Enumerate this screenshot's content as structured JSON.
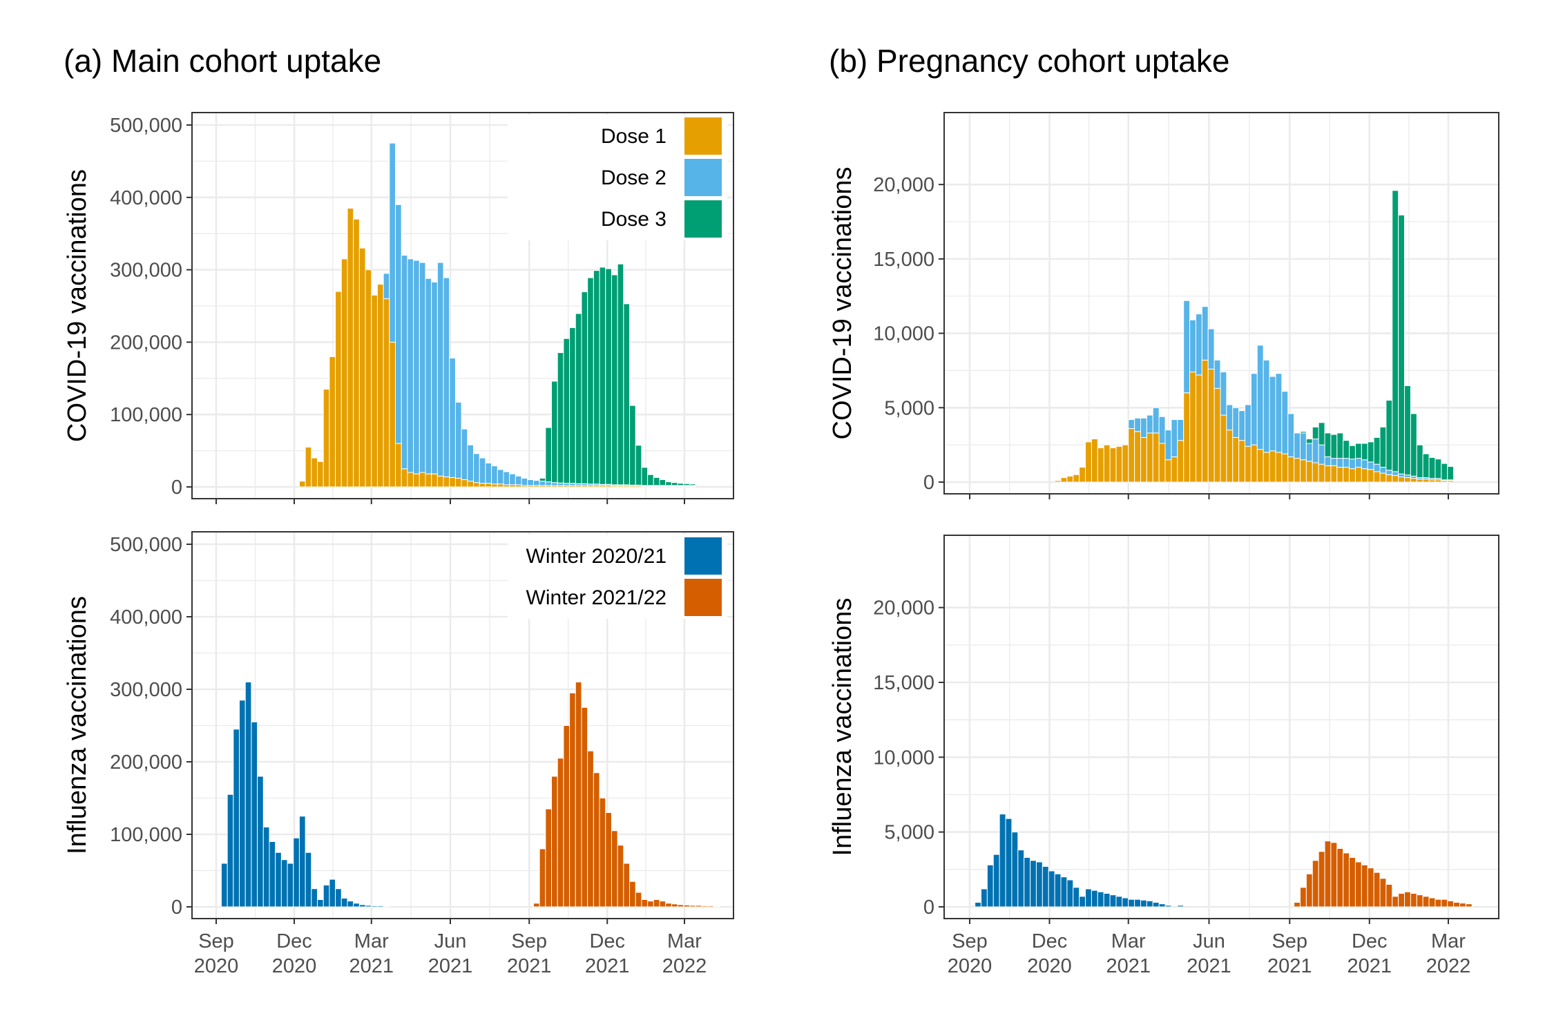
{
  "colors": {
    "dose1": "#E69F00",
    "dose2": "#56B4E9",
    "dose3": "#009E73",
    "winter2020": "#0072B2",
    "winter2021": "#D55E00",
    "grid": "#ebebeb",
    "frame": "#333333",
    "tick_text": "#4d4d4d"
  },
  "x_ticks": [
    {
      "date": "2020-09-01",
      "label": "Sep\n2020"
    },
    {
      "date": "2020-12-01",
      "label": "Dec\n2020"
    },
    {
      "date": "2021-03-01",
      "label": "Mar\n2021"
    },
    {
      "date": "2021-06-01",
      "label": "Jun\n2021"
    },
    {
      "date": "2021-09-01",
      "label": "Sep\n2021"
    },
    {
      "date": "2021-12-01",
      "label": "Dec\n2021"
    },
    {
      "date": "2022-03-01",
      "label": "Mar\n2022"
    }
  ],
  "chart_data": [
    {
      "type": "bar",
      "stacked": true,
      "title": "(a) Main cohort uptake",
      "xlabel": "",
      "ylabel": "COVID-19 vaccinations",
      "ylim": [
        0,
        500000
      ],
      "y_ticks": [
        0,
        100000,
        200000,
        300000,
        400000,
        500000
      ],
      "y_tick_labels": [
        "0",
        "100,000",
        "200,000",
        "300,000",
        "400,000",
        "500,000"
      ],
      "grid": true,
      "legend_position": "top-right",
      "x_start": "2020-12-07",
      "x_interval": "week",
      "series": [
        {
          "name": "Dose 1",
          "color_key": "dose1",
          "values": [
            8000,
            55000,
            40000,
            35000,
            135000,
            180000,
            270000,
            315000,
            385000,
            370000,
            330000,
            300000,
            265000,
            280000,
            260000,
            200000,
            60000,
            25000,
            20000,
            18000,
            20000,
            18000,
            18000,
            15000,
            14000,
            13000,
            12000,
            10000,
            8000,
            6000,
            5000,
            5000,
            4000,
            4000,
            3000,
            3000,
            3000,
            2000,
            2000,
            2000,
            2000,
            2000,
            2000,
            2000,
            2000,
            2000,
            2000,
            2000,
            2000,
            2000,
            2000,
            2000,
            1500,
            1500,
            1500,
            1500,
            1500,
            1000,
            1000,
            1000,
            1000,
            1000,
            1000,
            1000,
            1000,
            1000
          ]
        },
        {
          "name": "Dose 2",
          "color_key": "dose2",
          "values": [
            0,
            0,
            0,
            0,
            0,
            0,
            0,
            0,
            0,
            0,
            0,
            0,
            0,
            0,
            35000,
            275000,
            330000,
            295000,
            295000,
            295000,
            290000,
            270000,
            265000,
            295000,
            275000,
            165000,
            105000,
            70000,
            50000,
            40000,
            35000,
            28000,
            25000,
            20000,
            18000,
            15000,
            12000,
            10000,
            8000,
            7000,
            6000,
            5000,
            4000,
            3500,
            3000,
            3000,
            2500,
            2500,
            2000,
            2000,
            1500,
            1500,
            1500,
            1500,
            1500,
            1000,
            1000,
            1000,
            1000,
            1000,
            1000,
            1000,
            1000,
            1000,
            1000,
            1000
          ]
        },
        {
          "name": "Dose 3",
          "color_key": "dose3",
          "values": [
            0,
            0,
            0,
            0,
            0,
            0,
            0,
            0,
            0,
            0,
            0,
            0,
            0,
            0,
            0,
            0,
            0,
            0,
            0,
            0,
            0,
            0,
            0,
            0,
            0,
            0,
            0,
            0,
            0,
            0,
            0,
            0,
            0,
            0,
            0,
            0,
            0,
            0,
            0,
            0,
            4000,
            75000,
            140000,
            180000,
            200000,
            215000,
            235000,
            265000,
            285000,
            295000,
            300000,
            298000,
            290000,
            305000,
            250000,
            110000,
            55000,
            25000,
            15000,
            11000,
            8000,
            5000,
            4000,
            3000,
            2500,
            2000
          ]
        }
      ]
    },
    {
      "type": "bar",
      "stacked": true,
      "title": "(b) Pregnancy cohort uptake",
      "xlabel": "",
      "ylabel": "COVID-19 vaccinations",
      "ylim": [
        0,
        24000
      ],
      "y_ticks": [
        0,
        5000,
        10000,
        15000,
        20000
      ],
      "y_tick_labels": [
        "0",
        "5,000",
        "10,000",
        "15,000",
        "20,000"
      ],
      "grid": true,
      "legend_position": "none",
      "x_start": "2020-12-07",
      "x_interval": "week",
      "series": [
        {
          "name": "Dose 1",
          "color_key": "dose1",
          "values": [
            100,
            300,
            400,
            500,
            1000,
            2700,
            2900,
            2300,
            2500,
            2300,
            2400,
            2500,
            3600,
            3400,
            3000,
            3300,
            3300,
            2600,
            1500,
            1700,
            2800,
            6000,
            7400,
            7200,
            8200,
            7600,
            6300,
            4500,
            3500,
            3000,
            2800,
            2400,
            2500,
            2200,
            2000,
            2100,
            2000,
            1900,
            1700,
            1600,
            1500,
            1400,
            1300,
            1200,
            1100,
            1100,
            1000,
            1000,
            900,
            1000,
            900,
            850,
            700,
            600,
            500,
            450,
            350,
            300,
            250,
            200,
            200,
            150,
            150,
            100,
            100
          ]
        },
        {
          "name": "Dose 2",
          "color_key": "dose2",
          "values": [
            0,
            0,
            0,
            0,
            0,
            0,
            0,
            0,
            0,
            0,
            0,
            0,
            600,
            900,
            1300,
            1200,
            1700,
            1800,
            2000,
            2500,
            1400,
            6200,
            3500,
            4100,
            3600,
            2700,
            1900,
            2900,
            1700,
            2000,
            2000,
            2800,
            4800,
            7000,
            6200,
            5000,
            5300,
            4200,
            2900,
            1700,
            1800,
            1200,
            1600,
            1300,
            600,
            500,
            600,
            600,
            650,
            600,
            600,
            500,
            500,
            400,
            300,
            250,
            200,
            180,
            150,
            100,
            100,
            100,
            100,
            50,
            50
          ]
        },
        {
          "name": "Dose 3",
          "color_key": "dose3",
          "values": [
            0,
            0,
            0,
            0,
            0,
            0,
            0,
            0,
            0,
            0,
            0,
            0,
            0,
            0,
            0,
            0,
            0,
            0,
            0,
            0,
            0,
            0,
            0,
            0,
            0,
            0,
            0,
            0,
            0,
            0,
            0,
            0,
            0,
            0,
            0,
            0,
            0,
            0,
            0,
            0,
            100,
            300,
            800,
            1500,
            1600,
            1600,
            1700,
            1200,
            900,
            1000,
            1100,
            1350,
            1800,
            2700,
            4700,
            18900,
            17400,
            6000,
            4200,
            2200,
            1600,
            1400,
            1300,
            1100,
            900
          ]
        }
      ]
    },
    {
      "type": "bar",
      "stacked": false,
      "title": "",
      "xlabel": "",
      "ylabel": "Influenza vaccinations",
      "ylim": [
        0,
        500000
      ],
      "y_ticks": [
        0,
        100000,
        200000,
        300000,
        400000,
        500000
      ],
      "y_tick_labels": [
        "0",
        "100,000",
        "200,000",
        "300,000",
        "400,000",
        "500,000"
      ],
      "grid": true,
      "legend_position": "top-right",
      "x_start": "2020-09-07",
      "x_interval": "week",
      "series": [
        {
          "name": "Winter 2020/21",
          "color_key": "winter2020",
          "values": [
            60000,
            155000,
            245000,
            285000,
            310000,
            255000,
            180000,
            110000,
            90000,
            75000,
            65000,
            60000,
            95000,
            125000,
            75000,
            25000,
            10000,
            30000,
            38000,
            25000,
            12000,
            8000,
            5000,
            3000,
            2000,
            1500,
            1500,
            1000
          ]
        },
        {
          "name": "Winter 2021/22",
          "color_key": "winter2021",
          "values": [
            5000,
            80000,
            135000,
            180000,
            205000,
            250000,
            295000,
            310000,
            275000,
            215000,
            185000,
            150000,
            130000,
            105000,
            85000,
            60000,
            35000,
            20000,
            10000,
            8000,
            10000,
            8000,
            5000,
            4000,
            3000,
            2500,
            2000,
            2000,
            1500,
            1500,
            1000
          ]
        }
      ]
    },
    {
      "type": "bar",
      "stacked": false,
      "title": "",
      "xlabel": "",
      "ylabel": "Influenza vaccinations",
      "ylim": [
        0,
        24000
      ],
      "y_ticks": [
        0,
        5000,
        10000,
        15000,
        20000
      ],
      "y_tick_labels": [
        "0",
        "5,000",
        "10,000",
        "15,000",
        "20,000"
      ],
      "grid": true,
      "legend_position": "none",
      "x_start": "2020-09-07",
      "x_interval": "week",
      "series": [
        {
          "name": "Winter 2020/21",
          "color_key": "winter2020",
          "values": [
            300,
            1200,
            2800,
            3500,
            6200,
            5900,
            5000,
            3800,
            3300,
            3100,
            3000,
            2700,
            2400,
            2200,
            2000,
            1800,
            1300,
            700,
            1200,
            1100,
            1000,
            900,
            800,
            700,
            600,
            500,
            500,
            450,
            400,
            300,
            200,
            100,
            0,
            100
          ]
        },
        {
          "name": "Winter 2021/22",
          "color_key": "winter2021",
          "values": [
            300,
            1300,
            2200,
            3100,
            3700,
            4400,
            4300,
            3900,
            3600,
            3300,
            3000,
            2800,
            2600,
            2300,
            1900,
            1500,
            700,
            900,
            1000,
            900,
            800,
            700,
            600,
            500,
            500,
            400,
            300,
            250,
            200
          ]
        }
      ]
    }
  ]
}
